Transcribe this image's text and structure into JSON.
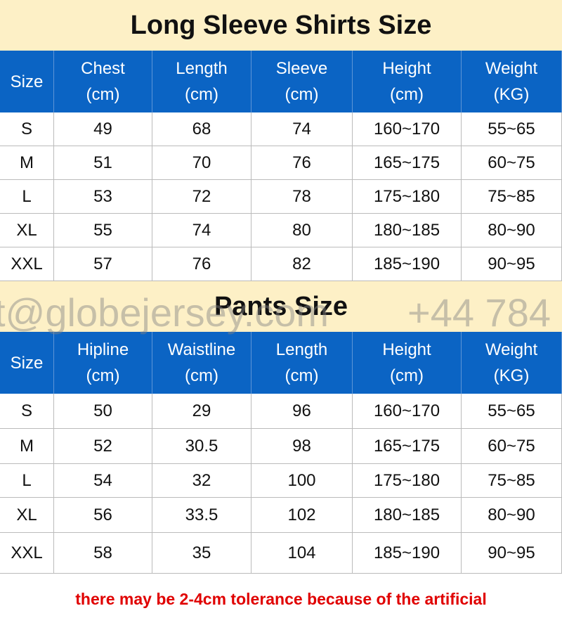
{
  "tables": [
    {
      "title": "Long Sleeve Shirts Size",
      "header": [
        [
          "Size"
        ],
        [
          "Chest",
          "(cm)"
        ],
        [
          "Length",
          "(cm)"
        ],
        [
          "Sleeve",
          "(cm)"
        ],
        [
          "Height",
          "(cm)"
        ],
        [
          "Weight",
          "(KG)"
        ]
      ],
      "rows": [
        [
          "S",
          "49",
          "68",
          "74",
          "160~170",
          "55~65"
        ],
        [
          "M",
          "51",
          "70",
          "76",
          "165~175",
          "60~75"
        ],
        [
          "L",
          "53",
          "72",
          "78",
          "175~180",
          "75~85"
        ],
        [
          "XL",
          "55",
          "74",
          "80",
          "180~185",
          "80~90"
        ],
        [
          "XXL",
          "57",
          "76",
          "82",
          "185~190",
          "90~95"
        ]
      ]
    },
    {
      "title": "Pants Size",
      "header": [
        [
          "Size"
        ],
        [
          "Hipline",
          "(cm)"
        ],
        [
          "Waistline",
          "(cm)"
        ],
        [
          "Length",
          "(cm)"
        ],
        [
          "Height",
          "(cm)"
        ],
        [
          "Weight",
          "(KG)"
        ]
      ],
      "rows": [
        [
          "S",
          "50",
          "29",
          "96",
          "160~170",
          "55~65"
        ],
        [
          "M",
          "52",
          "30.5",
          "98",
          "165~175",
          "60~75"
        ],
        [
          "L",
          "54",
          "32",
          "100",
          "175~180",
          "75~85"
        ],
        [
          "XL",
          "56",
          "33.5",
          "102",
          "180~185",
          "80~90"
        ],
        [
          "XXL",
          "58",
          "35",
          "104",
          "185~190",
          "90~95"
        ]
      ]
    }
  ],
  "watermark": [
    "t@globejersey.com",
    "+44 784"
  ],
  "note": "there may be 2-4cm tolerance because of the artificial"
}
